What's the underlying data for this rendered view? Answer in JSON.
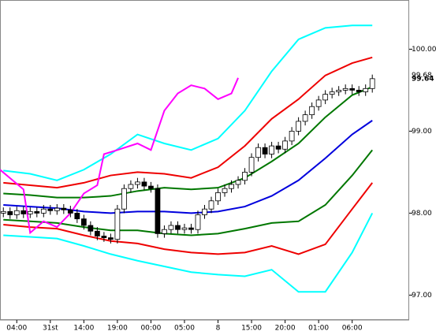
{
  "chart_data": {
    "type": "candlestick",
    "ylim": [
      96.7,
      100.6
    ],
    "yticks": [
      {
        "value": 97,
        "label": "97.00"
      },
      {
        "value": 98,
        "label": "98.00"
      },
      {
        "value": 99,
        "label": "99.00"
      },
      {
        "value": 100,
        "label": "100.00"
      }
    ],
    "xlim": [
      -0.5,
      60.5
    ],
    "xticks": [
      {
        "value": 2,
        "label": "04:00"
      },
      {
        "value": 7,
        "label": "31st"
      },
      {
        "value": 12,
        "label": "14:00"
      },
      {
        "value": 17,
        "label": "19:00"
      },
      {
        "value": 22,
        "label": "00:00"
      },
      {
        "value": 27,
        "label": "05:00"
      },
      {
        "value": 32,
        "label": "8"
      },
      {
        "value": 37,
        "label": "15:00"
      },
      {
        "value": 42,
        "label": "20:00"
      },
      {
        "value": 47,
        "label": "01:00"
      },
      {
        "value": 52,
        "label": "06:00"
      }
    ],
    "candles": {
      "up_color": "#ffffff",
      "down_color": "#000000",
      "edge_color": "#000000",
      "open": [
        98.0,
        98.02,
        97.98,
        98.03,
        97.99,
        98.02,
        98.0,
        98.05,
        98.03,
        98.06,
        98.04,
        98.0,
        97.93,
        97.85,
        97.78,
        97.72,
        97.7,
        97.68,
        98.05,
        98.3,
        98.35,
        98.38,
        98.33,
        98.3,
        97.75,
        97.8,
        97.85,
        97.8,
        97.82,
        97.8,
        97.98,
        98.05,
        98.15,
        98.25,
        98.3,
        98.35,
        98.4,
        98.5,
        98.68,
        98.8,
        98.72,
        98.82,
        98.78,
        98.88,
        99.0,
        99.12,
        99.2,
        99.3,
        99.38,
        99.45,
        99.48,
        99.5,
        99.52,
        99.5,
        99.48,
        99.52
      ],
      "high": [
        98.07,
        98.07,
        98.08,
        98.08,
        98.07,
        98.07,
        98.1,
        98.1,
        98.11,
        98.11,
        98.09,
        98.05,
        97.98,
        97.9,
        97.83,
        97.77,
        97.75,
        98.1,
        98.35,
        98.4,
        98.43,
        98.43,
        98.38,
        98.35,
        97.85,
        97.9,
        97.9,
        97.87,
        97.87,
        98.03,
        98.1,
        98.2,
        98.3,
        98.35,
        98.4,
        98.45,
        98.55,
        98.73,
        98.85,
        98.85,
        98.87,
        98.87,
        98.93,
        99.05,
        99.17,
        99.25,
        99.35,
        99.43,
        99.5,
        99.53,
        99.55,
        99.57,
        99.57,
        99.55,
        99.57,
        99.69
      ],
      "low": [
        97.95,
        97.93,
        97.93,
        97.94,
        97.94,
        97.95,
        97.95,
        97.98,
        97.98,
        97.99,
        97.95,
        97.88,
        97.8,
        97.73,
        97.67,
        97.65,
        97.63,
        97.63,
        98.0,
        98.25,
        98.3,
        98.28,
        98.25,
        97.7,
        97.7,
        97.75,
        97.75,
        97.75,
        97.75,
        97.75,
        97.93,
        98.0,
        98.1,
        98.2,
        98.25,
        98.3,
        98.35,
        98.45,
        98.63,
        98.67,
        98.67,
        98.73,
        98.73,
        98.83,
        98.95,
        99.07,
        99.15,
        99.25,
        99.33,
        99.4,
        99.43,
        99.45,
        99.45,
        99.43,
        99.43,
        99.47
      ],
      "close": [
        98.02,
        97.98,
        98.03,
        97.99,
        98.02,
        98.0,
        98.05,
        98.03,
        98.06,
        98.04,
        98.0,
        97.93,
        97.85,
        97.78,
        97.72,
        97.7,
        97.68,
        98.05,
        98.3,
        98.35,
        98.38,
        98.33,
        98.3,
        97.75,
        97.8,
        97.85,
        97.8,
        97.82,
        97.8,
        97.98,
        98.05,
        98.15,
        98.25,
        98.3,
        98.35,
        98.4,
        98.5,
        98.68,
        98.8,
        98.72,
        98.82,
        98.78,
        98.88,
        99.0,
        99.12,
        99.2,
        99.3,
        99.38,
        99.45,
        99.48,
        99.5,
        99.52,
        99.5,
        99.48,
        99.52,
        99.64
      ]
    },
    "lines": [
      {
        "color": "#00ffff",
        "x": [
          0,
          4,
          8,
          12,
          16,
          20,
          24,
          28,
          32,
          36,
          40,
          44,
          48,
          52,
          55
        ],
        "values": [
          98.52,
          98.48,
          98.4,
          98.53,
          98.72,
          98.96,
          98.85,
          98.77,
          98.91,
          99.25,
          99.73,
          100.12,
          100.26,
          100.29,
          100.29
        ]
      },
      {
        "color": "#ee0000",
        "x": [
          0,
          4,
          8,
          12,
          16,
          20,
          24,
          28,
          32,
          36,
          40,
          44,
          48,
          52,
          55
        ],
        "values": [
          98.37,
          98.34,
          98.31,
          98.37,
          98.46,
          98.5,
          98.48,
          98.43,
          98.56,
          98.82,
          99.15,
          99.39,
          99.68,
          99.83,
          99.9
        ]
      },
      {
        "color": "#007700",
        "x": [
          0,
          4,
          8,
          12,
          16,
          20,
          24,
          28,
          32,
          36,
          40,
          44,
          48,
          52,
          55
        ],
        "values": [
          98.24,
          98.22,
          98.19,
          98.19,
          98.21,
          98.27,
          98.31,
          98.29,
          98.31,
          98.43,
          98.63,
          98.85,
          99.17,
          99.44,
          99.54
        ]
      },
      {
        "color": "#0000dd",
        "x": [
          0,
          4,
          8,
          12,
          16,
          20,
          24,
          28,
          32,
          36,
          40,
          44,
          48,
          52,
          55
        ],
        "values": [
          98.1,
          98.08,
          98.06,
          98.02,
          98.0,
          98.02,
          98.02,
          98.0,
          98.02,
          98.08,
          98.21,
          98.4,
          98.67,
          98.96,
          99.13
        ]
      },
      {
        "color": "#007700",
        "x": [
          0,
          4,
          8,
          12,
          16,
          20,
          24,
          28,
          32,
          36,
          40,
          44,
          48,
          52,
          55
        ],
        "values": [
          97.92,
          97.9,
          97.88,
          97.83,
          97.79,
          97.79,
          97.75,
          97.73,
          97.75,
          97.81,
          97.88,
          97.9,
          98.1,
          98.46,
          98.77
        ]
      },
      {
        "color": "#ee0000",
        "x": [
          0,
          4,
          8,
          12,
          16,
          20,
          24,
          28,
          32,
          36,
          40,
          44,
          48,
          52,
          55
        ],
        "values": [
          97.86,
          97.83,
          97.81,
          97.73,
          97.66,
          97.63,
          97.56,
          97.52,
          97.5,
          97.52,
          97.6,
          97.5,
          97.62,
          98.05,
          98.37
        ]
      },
      {
        "color": "#00ffff",
        "x": [
          0,
          4,
          8,
          12,
          16,
          20,
          24,
          28,
          32,
          36,
          40,
          44,
          48,
          52,
          55
        ],
        "values": [
          97.73,
          97.71,
          97.69,
          97.6,
          97.5,
          97.42,
          97.35,
          97.28,
          97.25,
          97.23,
          97.31,
          97.04,
          97.04,
          97.52,
          98.0
        ]
      },
      {
        "color": "#ff00ff",
        "x": [
          -0.5,
          3,
          4,
          6,
          8,
          10,
          12,
          14,
          15,
          17,
          20,
          22,
          24,
          26,
          28,
          30,
          32,
          34,
          35
        ],
        "values": [
          98.53,
          98.29,
          97.76,
          97.9,
          97.83,
          98.0,
          98.24,
          98.34,
          98.72,
          98.77,
          98.85,
          98.77,
          99.25,
          99.46,
          99.56,
          99.52,
          99.39,
          99.46,
          99.65
        ]
      }
    ],
    "price_labels": [
      {
        "value": 99.68,
        "label": "99.68",
        "color": "#ff00ff"
      },
      {
        "value": 99.64,
        "label": "99.64",
        "color": "#000000"
      }
    ]
  }
}
